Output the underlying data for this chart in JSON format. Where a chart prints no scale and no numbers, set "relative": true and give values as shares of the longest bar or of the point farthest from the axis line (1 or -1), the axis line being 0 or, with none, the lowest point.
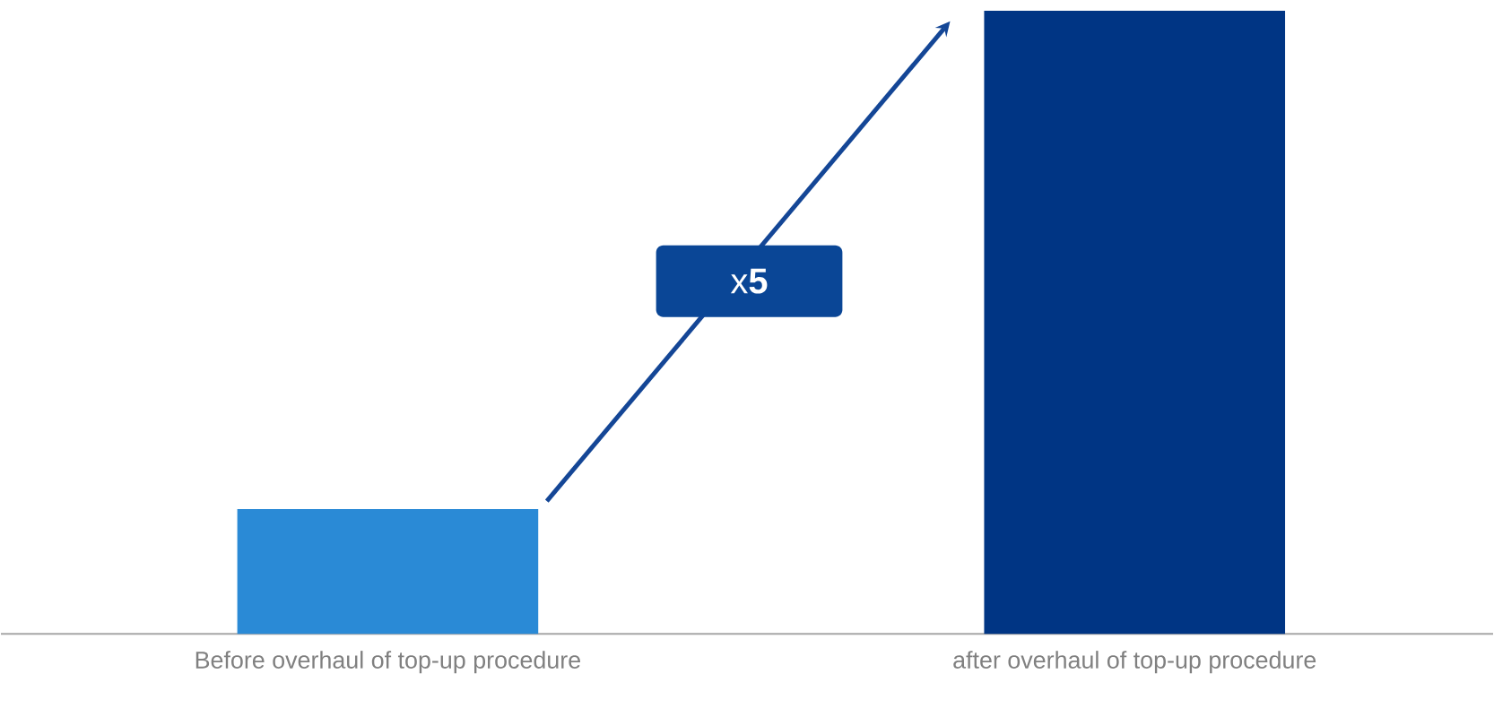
{
  "chart_data": {
    "type": "bar",
    "relative": true,
    "categories": [
      "Before overhaul of top-up procedure",
      "after overhaul of top-up procedure"
    ],
    "values": [
      0.2,
      1
    ],
    "colors": [
      "#2a8ad6",
      "#003584"
    ],
    "annotations": [
      "x**5**"
    ]
  }
}
